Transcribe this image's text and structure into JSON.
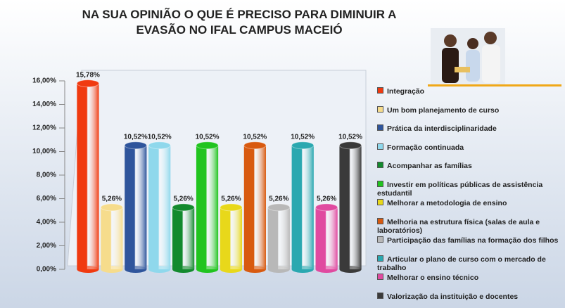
{
  "chart_data": {
    "type": "bar",
    "title": "NA SUA OPINIÃO O QUE É PRECISO PARA DIMINUIR A EVASÃO NO IFAL CAMPUS MACEIÓ",
    "categories": [
      "Integração",
      "Um bom planejamento de curso",
      "Prática da interdisciplinaridade",
      "Formação continuada",
      "Acompanhar as famílias",
      "Investir em políticas públicas de assistência estudantil",
      "Melhorar a metodologia de ensino",
      "Melhoria na estrutura física (salas de aula e laboratórios)",
      "Participação das famílias na formação dos filhos",
      "Articular o plano de curso com o mercado de trabalho",
      "Melhorar o ensino técnico",
      "Valorização da instituição e docentes"
    ],
    "values": [
      15.78,
      5.26,
      10.52,
      10.52,
      5.26,
      10.52,
      5.26,
      10.52,
      5.26,
      10.52,
      5.26,
      10.52
    ],
    "value_labels": [
      "15,78%",
      "5,26%",
      "10,52%",
      "10,52%",
      "5,26%",
      "10,52%",
      "5,26%",
      "10,52%",
      "5,26%",
      "10,52%",
      "5,26%",
      "10,52%"
    ],
    "colors": [
      "#f03a10",
      "#f6dc8c",
      "#2f559c",
      "#8fd8ec",
      "#138a2e",
      "#21c41f",
      "#e8d81a",
      "#d85a10",
      "#b8b8b8",
      "#2aa8b0",
      "#e04aa0",
      "#3a3a3a"
    ],
    "ylim": [
      0,
      16
    ],
    "yticks": [
      {
        "value": 0,
        "label": "0,00%"
      },
      {
        "value": 2,
        "label": "2,00%"
      },
      {
        "value": 4,
        "label": "4,00%"
      },
      {
        "value": 6,
        "label": "6,00%"
      },
      {
        "value": 8,
        "label": "8,00%"
      },
      {
        "value": 10,
        "label": "10,00%"
      },
      {
        "value": 12,
        "label": "12,00%"
      },
      {
        "value": 14,
        "label": "14,00%"
      },
      {
        "value": 16,
        "label": "16,00%"
      }
    ],
    "legend": "right"
  }
}
